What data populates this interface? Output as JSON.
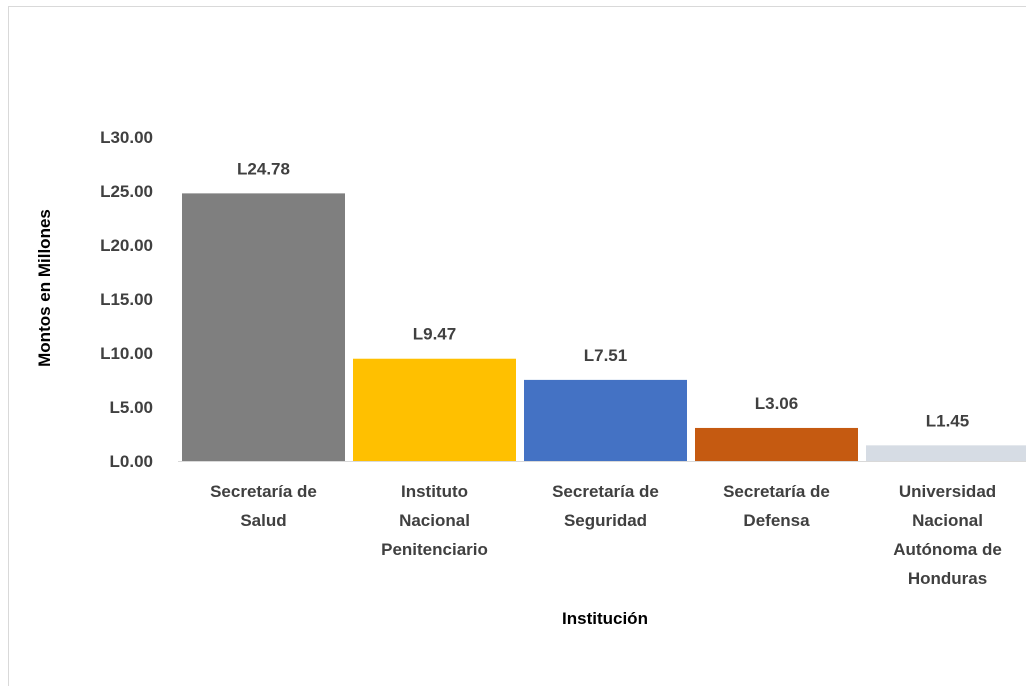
{
  "chart_data": {
    "type": "bar",
    "title": "",
    "xlabel": "Institución",
    "ylabel": "Montos en Millones",
    "ylim": [
      0,
      30
    ],
    "y_ticks": [
      "L0.00",
      "L5.00",
      "L10.00",
      "L15.00",
      "L20.00",
      "L25.00",
      "L30.00"
    ],
    "y_tick_values": [
      0,
      5,
      10,
      15,
      20,
      25,
      30
    ],
    "grid": false,
    "legend": "none",
    "categories": [
      [
        "Secretaría de",
        "Salud"
      ],
      [
        "Instituto",
        "Nacional",
        "Penitenciario"
      ],
      [
        "Secretaría de",
        "Seguridad"
      ],
      [
        "Secretaría de",
        "Defensa"
      ],
      [
        "Universidad",
        "Nacional",
        "Autónoma de",
        "Honduras"
      ]
    ],
    "values": [
      24.78,
      9.47,
      7.51,
      3.06,
      1.45
    ],
    "data_labels": [
      "L24.78",
      "L9.47",
      "L7.51",
      "L3.06",
      "L1.45"
    ],
    "colors": [
      "#7f7f7f",
      "#ffc000",
      "#4472c4",
      "#c55a11",
      "#d6dce4"
    ]
  }
}
